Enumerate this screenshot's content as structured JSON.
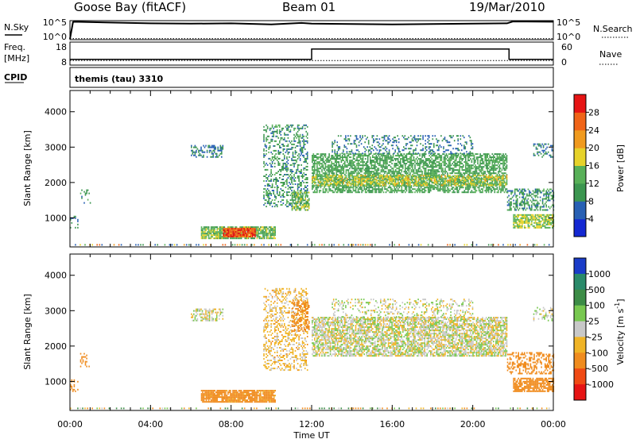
{
  "header": {
    "station": "Goose Bay (fitACF)",
    "beam": "Beam 01",
    "date": "19/Mar/2010"
  },
  "strip_panels": {
    "nsky": {
      "left_label": "N.Sky",
      "left_ticks": [
        "10^5",
        "10^0"
      ],
      "right_label": "N.Search",
      "right_ticks": [
        "10^5",
        "10^0"
      ]
    },
    "freq": {
      "left_label_1": "Freq.",
      "left_label_2": "[MHz]",
      "left_ticks": [
        "18",
        "8"
      ],
      "right_label": "Nave",
      "right_ticks": [
        "60",
        "0"
      ]
    },
    "cpid": {
      "label": "CPID",
      "value": "themis (tau) 3310"
    }
  },
  "chart_data": [
    {
      "type": "line",
      "title": "",
      "ylabel": "N.Sky / N.Search",
      "series": [
        {
          "name": "N.Sky",
          "x": [
            0,
            0.15,
            0.2,
            2,
            4,
            6,
            8,
            10,
            11.5,
            12,
            14,
            16,
            18,
            20,
            21.7,
            22,
            24
          ],
          "values": [
            0.2,
            4.6,
            4.7,
            4.5,
            4.3,
            4.2,
            4.3,
            4.0,
            4.4,
            4.2,
            4.1,
            4.0,
            4.1,
            4.2,
            4.3,
            4.8,
            4.7
          ]
        },
        {
          "name": "N.Search",
          "x": [
            0,
            24
          ],
          "values": [
            0.3,
            0.3
          ]
        }
      ]
    },
    {
      "type": "line",
      "title": "",
      "ylabel": "Freq. [MHz] / Nave",
      "series": [
        {
          "name": "Freq.",
          "x": [
            0,
            12,
            12,
            21.8,
            21.8,
            24
          ],
          "values": [
            10.5,
            10.5,
            15,
            15,
            10.5,
            10.5
          ]
        },
        {
          "name": "Nave",
          "x": [
            0,
            24
          ],
          "values": [
            10,
            10
          ]
        }
      ]
    },
    {
      "type": "heatmap",
      "title": "",
      "xlabel": "Time UT",
      "ylabel": "Slant Range [km]",
      "x_range": [
        0,
        24
      ],
      "ylim": [
        180,
        4600
      ],
      "x_ticks": [
        "00:00",
        "04:00",
        "08:00",
        "12:00",
        "16:00",
        "20:00",
        "00:00"
      ],
      "y_ticks": [
        1000,
        2000,
        3000,
        4000
      ],
      "colorbar": {
        "label": "Power [dB]",
        "ticks": [
          "4",
          "8",
          "12",
          "16",
          "20",
          "24",
          "28"
        ],
        "colors": [
          "#1428d2",
          "#2860b4",
          "#3c9650",
          "#58b058",
          "#e6d22a",
          "#f09a1e",
          "#f06418",
          "#e61414"
        ]
      },
      "regions": [
        {
          "x0": 0.5,
          "x1": 1.0,
          "y0": 1400,
          "y1": 1800,
          "power": 10,
          "density": 0.25
        },
        {
          "x0": 0.0,
          "x1": 0.4,
          "y0": 700,
          "y1": 1050,
          "power": 8,
          "density": 0.3
        },
        {
          "x0": 6.0,
          "x1": 7.6,
          "y0": 2700,
          "y1": 3050,
          "power": 8,
          "density": 0.45
        },
        {
          "x0": 6.5,
          "x1": 10.2,
          "y0": 400,
          "y1": 750,
          "power": 14,
          "density": 0.85
        },
        {
          "x0": 7.6,
          "x1": 9.2,
          "y0": 450,
          "y1": 680,
          "power": 27,
          "density": 0.95
        },
        {
          "x0": 9.6,
          "x1": 11.8,
          "y0": 1300,
          "y1": 3600,
          "power": 10,
          "density": 0.35
        },
        {
          "x0": 11.0,
          "x1": 11.9,
          "y0": 1200,
          "y1": 1700,
          "power": 14,
          "density": 0.6
        },
        {
          "x0": 12.0,
          "x1": 21.7,
          "y0": 1700,
          "y1": 2800,
          "power": 12,
          "density": 0.65
        },
        {
          "x0": 12.0,
          "x1": 21.7,
          "y0": 1900,
          "y1": 2200,
          "power": 17,
          "density": 0.55
        },
        {
          "x0": 13.0,
          "x1": 20.0,
          "y0": 2800,
          "y1": 3300,
          "power": 8,
          "density": 0.25
        },
        {
          "x0": 21.7,
          "x1": 24.0,
          "y0": 1200,
          "y1": 1800,
          "power": 10,
          "density": 0.45
        },
        {
          "x0": 22.0,
          "x1": 24.0,
          "y0": 700,
          "y1": 1100,
          "power": 16,
          "density": 0.75
        },
        {
          "x0": 23.0,
          "x1": 24.0,
          "y0": 2700,
          "y1": 3100,
          "power": 8,
          "density": 0.3
        }
      ]
    },
    {
      "type": "heatmap",
      "title": "",
      "xlabel": "Time UT",
      "ylabel": "Slant Range [km]",
      "x_range": [
        0,
        24
      ],
      "ylim": [
        180,
        4600
      ],
      "x_ticks": [
        "00:00",
        "04:00",
        "08:00",
        "12:00",
        "16:00",
        "20:00",
        "00:00"
      ],
      "y_ticks": [
        1000,
        2000,
        3000,
        4000
      ],
      "colorbar": {
        "label": "Velocity [m s^-1]",
        "ticks": [
          "1000",
          "500",
          "100",
          "25",
          "-25",
          "-100",
          "-500",
          "-1000"
        ],
        "colors": [
          "#1a3cc8",
          "#2a8a6a",
          "#3c8c46",
          "#78c850",
          "#c8c8c8",
          "#f0b426",
          "#f08c1e",
          "#f04a14",
          "#e61414"
        ]
      },
      "regions": [
        {
          "x0": 0.5,
          "x1": 1.0,
          "y0": 1400,
          "y1": 1800,
          "vel": -200,
          "density": 0.25
        },
        {
          "x0": 0.0,
          "x1": 0.4,
          "y0": 700,
          "y1": 1050,
          "vel": -300,
          "density": 0.3
        },
        {
          "x0": 6.0,
          "x1": 7.6,
          "y0": 2700,
          "y1": 3050,
          "vel": 0,
          "density": 0.45
        },
        {
          "x0": 6.5,
          "x1": 10.2,
          "y0": 400,
          "y1": 750,
          "vel": -150,
          "density": 0.85
        },
        {
          "x0": 9.6,
          "x1": 11.8,
          "y0": 1300,
          "y1": 3600,
          "vel": -50,
          "density": 0.35
        },
        {
          "x0": 11.0,
          "x1": 11.9,
          "y0": 2400,
          "y1": 3300,
          "vel": -300,
          "density": 0.45
        },
        {
          "x0": 12.0,
          "x1": 21.7,
          "y0": 1700,
          "y1": 2800,
          "vel": 0,
          "density": 0.7
        },
        {
          "x0": 13.0,
          "x1": 20.0,
          "y0": 2800,
          "y1": 3300,
          "vel": 0,
          "density": 0.25
        },
        {
          "x0": 21.7,
          "x1": 24.0,
          "y0": 1200,
          "y1": 1800,
          "vel": -300,
          "density": 0.45
        },
        {
          "x0": 22.0,
          "x1": 24.0,
          "y0": 700,
          "y1": 1100,
          "vel": -250,
          "density": 0.75
        },
        {
          "x0": 23.0,
          "x1": 24.0,
          "y0": 2700,
          "y1": 3100,
          "vel": 0,
          "density": 0.3
        }
      ]
    }
  ]
}
